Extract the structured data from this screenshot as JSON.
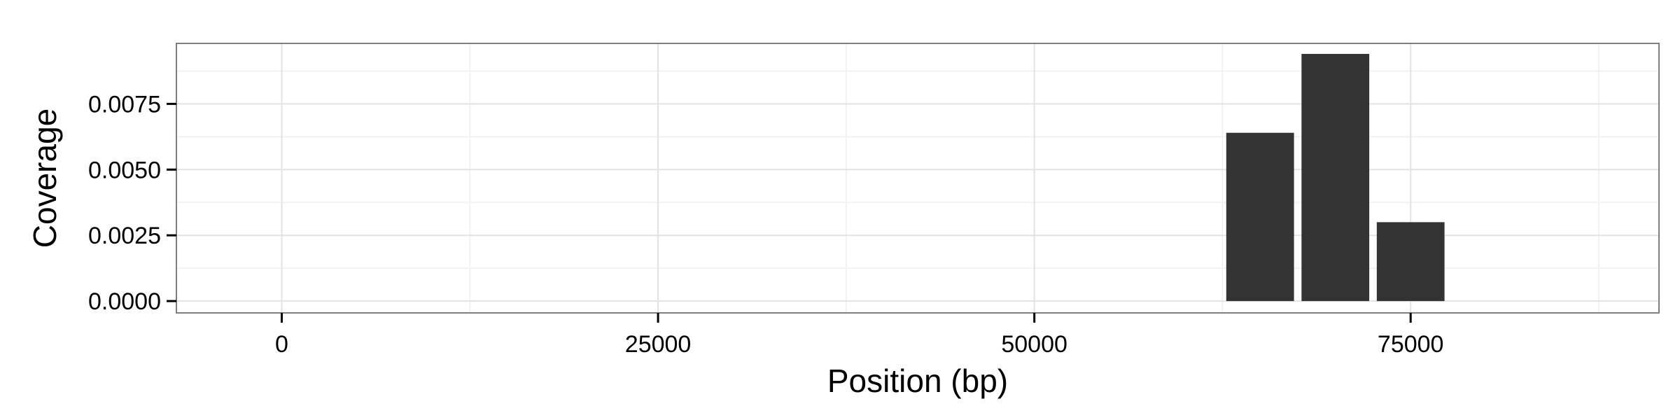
{
  "chart_data": {
    "type": "bar",
    "title": "",
    "xlabel": "Position (bp)",
    "ylabel": "Coverage",
    "x": [
      65000,
      70000,
      75000
    ],
    "values": [
      0.0064,
      0.0094,
      0.003
    ],
    "bin_width": 4500,
    "xlim": [
      -7000,
      91500
    ],
    "ylim": [
      -0.00045,
      0.0098
    ],
    "x_ticks": [
      0,
      25000,
      50000,
      75000
    ],
    "x_tick_labels": [
      "0",
      "25000",
      "50000",
      "75000"
    ],
    "x_minor_ticks": [
      12500,
      37500,
      62500,
      87500
    ],
    "y_ticks": [
      0,
      0.0025,
      0.005,
      0.0075
    ],
    "y_tick_labels": [
      "0.0000",
      "0.0025",
      "0.0050",
      "0.0075"
    ],
    "y_minor_ticks": [
      0.00125,
      0.00375,
      0.00625,
      0.00875
    ],
    "grid": true,
    "legend": "none",
    "colors": {
      "bar": "#333333",
      "panel_border": "#7f7f7f",
      "grid_major": "#e3e3e3",
      "grid_minor": "#f2f2f2"
    }
  }
}
